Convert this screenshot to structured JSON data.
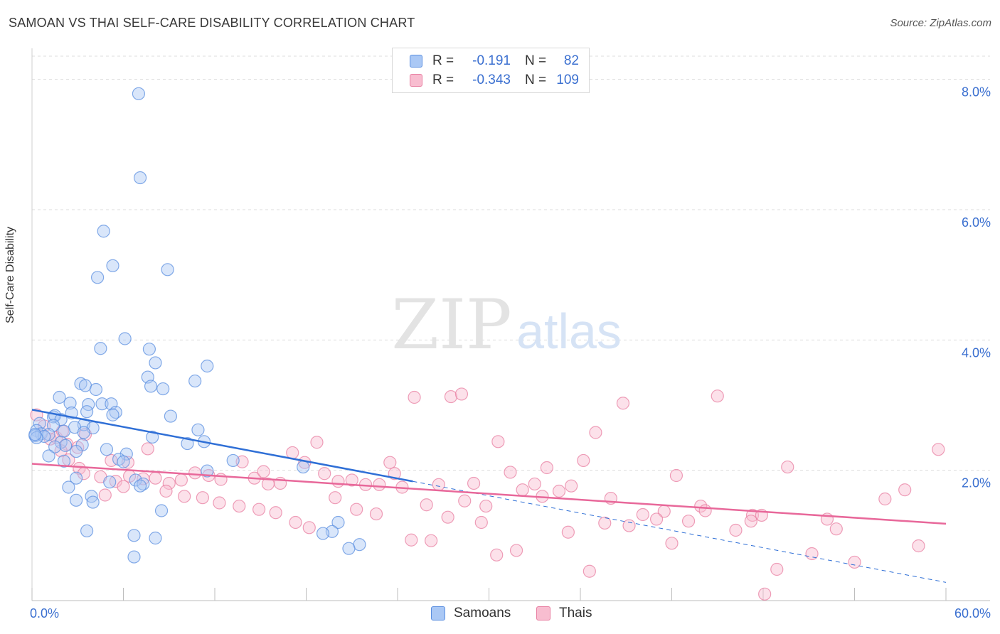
{
  "title": "SAMOAN VS THAI SELF-CARE DISABILITY CORRELATION CHART",
  "source": "Source: ZipAtlas.com",
  "watermark": {
    "zip": "ZIP",
    "atlas": "atlas"
  },
  "legend_top": [
    {
      "r_label": "R =",
      "r_value": "-0.191",
      "n_label": "N =",
      "n_value": "82",
      "fill": "#aac8f5",
      "stroke": "#5b8fe0"
    },
    {
      "r_label": "R =",
      "r_value": "-0.343",
      "n_label": "N =",
      "n_value": "109",
      "fill": "#f8bdd0",
      "stroke": "#e87fa2"
    }
  ],
  "chart_data": {
    "type": "scatter",
    "title": "SAMOAN VS THAI SELF-CARE DISABILITY CORRELATION CHART",
    "xlabel": "",
    "ylabel": "Self-Care Disability",
    "xlim": [
      0,
      60
    ],
    "ylim": [
      0,
      8.4
    ],
    "x_tick_labels": [
      "0.0%",
      "60.0%"
    ],
    "y_tick_labels": [
      "2.0%",
      "4.0%",
      "6.0%",
      "8.0%"
    ],
    "y_ticks": [
      2,
      4,
      6,
      8
    ],
    "grid": true,
    "legend": "bottom-center",
    "colors": {
      "samoans": "#5b8fe0",
      "samoans_fill": "#aac8f5",
      "thais": "#e87fa2",
      "thais_fill": "#f8bdd0",
      "samoan_trend": "#2f6fd6",
      "thai_trend": "#e8689a"
    },
    "series": [
      {
        "name": "Samoans",
        "trend": {
          "x": [
            0,
            25
          ],
          "y": [
            2.93,
            1.83
          ],
          "dashed_extension_to": [
            60,
            0.28
          ]
        },
        "points": [
          [
            7.0,
            7.78
          ],
          [
            7.1,
            6.49
          ],
          [
            4.7,
            5.67
          ],
          [
            5.3,
            5.14
          ],
          [
            8.9,
            5.08
          ],
          [
            4.3,
            4.96
          ],
          [
            6.1,
            4.02
          ],
          [
            4.5,
            3.87
          ],
          [
            7.7,
            3.86
          ],
          [
            8.1,
            3.65
          ],
          [
            11.5,
            3.6
          ],
          [
            7.6,
            3.43
          ],
          [
            10.7,
            3.37
          ],
          [
            3.2,
            3.33
          ],
          [
            3.5,
            3.3
          ],
          [
            7.8,
            3.29
          ],
          [
            8.6,
            3.25
          ],
          [
            4.2,
            3.24
          ],
          [
            1.8,
            3.12
          ],
          [
            2.5,
            3.03
          ],
          [
            3.7,
            3.01
          ],
          [
            4.6,
            3.02
          ],
          [
            5.2,
            3.02
          ],
          [
            1.4,
            2.82
          ],
          [
            3.6,
            2.9
          ],
          [
            5.5,
            2.89
          ],
          [
            2.6,
            2.88
          ],
          [
            5.3,
            2.85
          ],
          [
            1.5,
            2.84
          ],
          [
            9.1,
            2.83
          ],
          [
            1.9,
            2.78
          ],
          [
            0.5,
            2.72
          ],
          [
            1.4,
            2.69
          ],
          [
            3.4,
            2.7
          ],
          [
            2.8,
            2.66
          ],
          [
            4.0,
            2.65
          ],
          [
            10.9,
            2.62
          ],
          [
            0.3,
            2.61
          ],
          [
            2.1,
            2.6
          ],
          [
            3.4,
            2.58
          ],
          [
            0.6,
            2.56
          ],
          [
            1.1,
            2.55
          ],
          [
            0.2,
            2.53
          ],
          [
            0.8,
            2.52
          ],
          [
            0.3,
            2.5
          ],
          [
            7.9,
            2.51
          ],
          [
            11.3,
            2.44
          ],
          [
            1.9,
            2.43
          ],
          [
            10.2,
            2.41
          ],
          [
            3.3,
            2.39
          ],
          [
            2.2,
            2.38
          ],
          [
            1.5,
            2.36
          ],
          [
            2.9,
            2.29
          ],
          [
            4.9,
            2.32
          ],
          [
            6.2,
            2.25
          ],
          [
            1.1,
            2.22
          ],
          [
            5.7,
            2.17
          ],
          [
            13.2,
            2.15
          ],
          [
            6.0,
            2.13
          ],
          [
            2.1,
            2.14
          ],
          [
            11.5,
            1.99
          ],
          [
            17.8,
            2.05
          ],
          [
            2.9,
            1.88
          ],
          [
            6.8,
            1.85
          ],
          [
            7.3,
            1.79
          ],
          [
            5.1,
            1.82
          ],
          [
            2.4,
            1.74
          ],
          [
            7.1,
            1.76
          ],
          [
            3.9,
            1.6
          ],
          [
            4.0,
            1.51
          ],
          [
            2.9,
            1.54
          ],
          [
            8.5,
            1.38
          ],
          [
            20.1,
            1.2
          ],
          [
            3.6,
            1.07
          ],
          [
            19.7,
            1.06
          ],
          [
            19.1,
            1.03
          ],
          [
            6.7,
            1.0
          ],
          [
            8.1,
            0.96
          ],
          [
            21.5,
            0.86
          ],
          [
            20.8,
            0.8
          ],
          [
            6.7,
            0.67
          ],
          [
            0.2,
            2.55
          ]
        ]
      },
      {
        "name": "Thais",
        "trend": {
          "x": [
            0,
            60
          ],
          "y": [
            2.1,
            1.18
          ]
        },
        "points": [
          [
            0.3,
            2.85
          ],
          [
            0.8,
            2.68
          ],
          [
            1.6,
            2.5
          ],
          [
            3.5,
            2.55
          ],
          [
            1.2,
            2.48
          ],
          [
            2.3,
            2.4
          ],
          [
            1.9,
            2.3
          ],
          [
            2.4,
            2.16
          ],
          [
            3.1,
            2.03
          ],
          [
            5.2,
            2.15
          ],
          [
            6.3,
            2.12
          ],
          [
            3.4,
            1.95
          ],
          [
            4.5,
            1.9
          ],
          [
            5.5,
            1.83
          ],
          [
            6.4,
            1.91
          ],
          [
            7.3,
            1.87
          ],
          [
            8.1,
            1.88
          ],
          [
            9.0,
            1.8
          ],
          [
            9.8,
            1.85
          ],
          [
            10.7,
            1.96
          ],
          [
            11.6,
            1.92
          ],
          [
            12.4,
            1.86
          ],
          [
            13.8,
            2.13
          ],
          [
            14.6,
            1.88
          ],
          [
            15.5,
            1.79
          ],
          [
            16.3,
            1.8
          ],
          [
            17.1,
            2.27
          ],
          [
            17.9,
            2.12
          ],
          [
            18.7,
            2.43
          ],
          [
            19.2,
            1.95
          ],
          [
            20.1,
            1.83
          ],
          [
            21.0,
            1.85
          ],
          [
            21.9,
            1.78
          ],
          [
            22.8,
            1.78
          ],
          [
            23.5,
            2.12
          ],
          [
            24.3,
            1.74
          ],
          [
            25.1,
            3.12
          ],
          [
            25.9,
            1.47
          ],
          [
            26.7,
            1.78
          ],
          [
            27.5,
            3.13
          ],
          [
            28.2,
            3.17
          ],
          [
            29.0,
            1.8
          ],
          [
            29.8,
            1.45
          ],
          [
            30.6,
            2.44
          ],
          [
            31.4,
            1.97
          ],
          [
            32.2,
            1.7
          ],
          [
            33.0,
            1.79
          ],
          [
            33.8,
            2.04
          ],
          [
            34.6,
            1.68
          ],
          [
            35.4,
            1.76
          ],
          [
            36.2,
            2.15
          ],
          [
            37.0,
            2.58
          ],
          [
            38.0,
            1.57
          ],
          [
            38.8,
            3.03
          ],
          [
            40.1,
            1.32
          ],
          [
            41.5,
            1.37
          ],
          [
            42.3,
            1.92
          ],
          [
            43.1,
            1.22
          ],
          [
            43.9,
            1.45
          ],
          [
            45.0,
            3.14
          ],
          [
            46.2,
            1.08
          ],
          [
            47.3,
            1.31
          ],
          [
            48.9,
            0.48
          ],
          [
            49.6,
            2.05
          ],
          [
            51.2,
            0.72
          ],
          [
            52.2,
            1.25
          ],
          [
            52.8,
            1.1
          ],
          [
            54.0,
            0.59
          ],
          [
            48.1,
            0.1
          ],
          [
            47.9,
            1.31
          ],
          [
            47.2,
            1.22
          ],
          [
            56.0,
            1.56
          ],
          [
            57.3,
            1.7
          ],
          [
            58.2,
            0.84
          ],
          [
            59.5,
            2.32
          ],
          [
            3.0,
            2.35
          ],
          [
            2.0,
            2.6
          ],
          [
            4.8,
            1.62
          ],
          [
            6.0,
            1.75
          ],
          [
            7.6,
            2.33
          ],
          [
            8.8,
            1.68
          ],
          [
            10.0,
            1.6
          ],
          [
            11.2,
            1.58
          ],
          [
            12.3,
            1.5
          ],
          [
            13.6,
            1.45
          ],
          [
            14.9,
            1.4
          ],
          [
            16.0,
            1.35
          ],
          [
            17.3,
            1.2
          ],
          [
            18.2,
            1.12
          ],
          [
            19.9,
            1.58
          ],
          [
            21.3,
            1.4
          ],
          [
            22.6,
            1.33
          ],
          [
            23.8,
            1.95
          ],
          [
            24.9,
            0.93
          ],
          [
            26.2,
            0.92
          ],
          [
            27.3,
            1.28
          ],
          [
            28.4,
            1.53
          ],
          [
            29.5,
            1.2
          ],
          [
            30.5,
            0.7
          ],
          [
            31.8,
            0.77
          ],
          [
            33.5,
            1.6
          ],
          [
            35.2,
            1.05
          ],
          [
            36.6,
            0.45
          ],
          [
            37.6,
            1.19
          ],
          [
            39.2,
            1.15
          ],
          [
            41.0,
            1.25
          ],
          [
            42.0,
            0.88
          ],
          [
            44.2,
            1.38
          ],
          [
            15.2,
            1.98
          ]
        ]
      }
    ]
  }
}
